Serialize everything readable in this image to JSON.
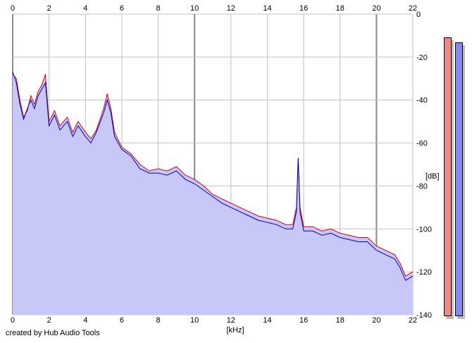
{
  "credit": "created by Hub Audio Tools",
  "colors": {
    "background": "#ffffff",
    "grid": "#c0c0c0",
    "grid_major": "#8a8a8a",
    "fill": "#c8c8f8",
    "left_channel": "#e00000",
    "right_channel": "#0000c8",
    "meter_left": "#f08888",
    "meter_right": "#8888f0"
  },
  "meters": [
    {
      "name": "left",
      "level_db": -11
    },
    {
      "name": "right",
      "level_db": -13
    }
  ],
  "chart_data": {
    "type": "line",
    "title": "",
    "xlabel": "[kHz]",
    "ylabel": "[dB]",
    "xlim": [
      0,
      22
    ],
    "ylim": [
      -140,
      0
    ],
    "x_ticks": [
      0,
      2,
      4,
      6,
      8,
      10,
      12,
      14,
      16,
      18,
      20,
      22
    ],
    "y_ticks": [
      0,
      -20,
      -40,
      -60,
      -80,
      -100,
      -120,
      -140
    ],
    "y_tick_labels": [
      "0",
      "-20",
      "-40",
      "-60",
      "-80",
      "-100",
      "-120",
      "-140"
    ],
    "grid": true,
    "x": [
      0,
      0.2,
      0.4,
      0.6,
      0.8,
      1.0,
      1.2,
      1.4,
      1.6,
      1.8,
      2.0,
      2.3,
      2.6,
      3.0,
      3.3,
      3.6,
      4.0,
      4.3,
      4.6,
      5.0,
      5.2,
      5.4,
      5.6,
      6.0,
      6.5,
      7.0,
      7.5,
      8.0,
      8.5,
      9.0,
      9.5,
      10.0,
      10.5,
      11.0,
      11.5,
      12.0,
      12.5,
      13.0,
      13.5,
      14.0,
      14.5,
      15.0,
      15.4,
      15.6,
      15.7,
      15.8,
      16.0,
      16.5,
      17.0,
      17.5,
      18.0,
      18.5,
      19.0,
      19.5,
      20.0,
      20.5,
      21.0,
      21.3,
      21.6,
      22.0
    ],
    "series": [
      {
        "name": "L",
        "values": [
          -28,
          -30,
          -40,
          -48,
          -45,
          -38,
          -42,
          -36,
          -33,
          -28,
          -50,
          -45,
          -52,
          -48,
          -55,
          -50,
          -55,
          -58,
          -54,
          -44,
          -37,
          -44,
          -55,
          -62,
          -65,
          -70,
          -73,
          -72,
          -73,
          -71,
          -75,
          -77,
          -80,
          -84,
          -86,
          -88,
          -90,
          -92,
          -94,
          -95,
          -96,
          -98,
          -98,
          -90,
          -67,
          -90,
          -99,
          -99,
          -101,
          -100,
          -102,
          -103,
          -104,
          -104,
          -108,
          -110,
          -112,
          -116,
          -122,
          -120
        ]
      },
      {
        "name": "R",
        "values": [
          -27,
          -32,
          -42,
          -49,
          -44,
          -40,
          -44,
          -38,
          -35,
          -32,
          -52,
          -47,
          -54,
          -50,
          -57,
          -52,
          -57,
          -60,
          -55,
          -46,
          -40,
          -46,
          -57,
          -63,
          -66,
          -72,
          -74,
          -74,
          -75,
          -73,
          -77,
          -79,
          -82,
          -85,
          -88,
          -90,
          -92,
          -94,
          -96,
          -97,
          -98,
          -100,
          -100,
          -92,
          -67,
          -92,
          -101,
          -101,
          -103,
          -102,
          -104,
          -105,
          -106,
          -106,
          -110,
          -112,
          -114,
          -118,
          -124,
          -122
        ]
      }
    ]
  }
}
